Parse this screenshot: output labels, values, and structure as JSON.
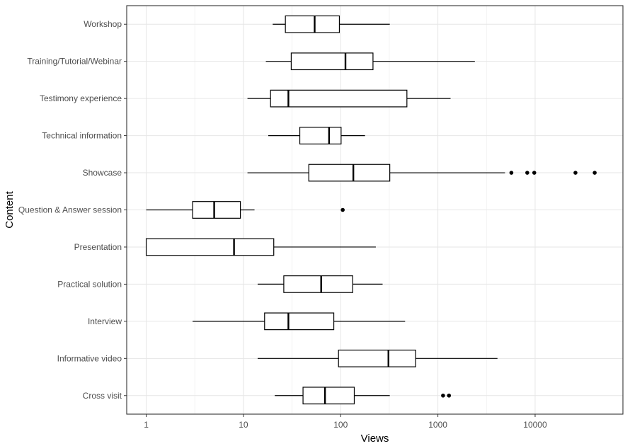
{
  "chart_data": {
    "type": "boxplot",
    "orientation": "horizontal",
    "title": "",
    "xlabel": "Views",
    "ylabel": "Content",
    "x_scale": "log10",
    "xlim": [
      0.63,
      80000
    ],
    "x_ticks": [
      1,
      10,
      100,
      1000,
      10000
    ],
    "x_tick_labels": [
      "1",
      "10",
      "100",
      "1000",
      "10000"
    ],
    "grid": true,
    "theme": "bw",
    "categories": [
      "Cross visit",
      "Informative video",
      "Interview",
      "Practical solution",
      "Presentation",
      "Question & Answer session",
      "Showcase",
      "Technical information",
      "Testimony experience",
      "Training/Tutorial/Webinar",
      "Workshop"
    ],
    "boxes": [
      {
        "category": "Cross visit",
        "whisker_low": 21,
        "q1": 41,
        "median": 69,
        "q3": 138,
        "whisker_high": 320,
        "outliers": [
          1130,
          1300
        ]
      },
      {
        "category": "Informative video",
        "whisker_low": 14,
        "q1": 95,
        "median": 310,
        "q3": 590,
        "whisker_high": 4100,
        "outliers": []
      },
      {
        "category": "Interview",
        "whisker_low": 3,
        "q1": 16.5,
        "median": 29,
        "q3": 85,
        "whisker_high": 460,
        "outliers": []
      },
      {
        "category": "Practical solution",
        "whisker_low": 14,
        "q1": 26,
        "median": 63,
        "q3": 133,
        "whisker_high": 270,
        "outliers": []
      },
      {
        "category": "Presentation",
        "whisker_low": 1,
        "q1": 1,
        "median": 8,
        "q3": 20.5,
        "whisker_high": 230,
        "outliers": []
      },
      {
        "category": "Question & Answer session",
        "whisker_low": 1,
        "q1": 3,
        "median": 5,
        "q3": 9.3,
        "whisker_high": 13,
        "outliers": [
          105
        ]
      },
      {
        "category": "Showcase",
        "whisker_low": 11,
        "q1": 47,
        "median": 135,
        "q3": 320,
        "whisker_high": 4900,
        "outliers": [
          5700,
          8300,
          9800,
          26000,
          41000
        ]
      },
      {
        "category": "Technical information",
        "whisker_low": 18,
        "q1": 38,
        "median": 76,
        "q3": 101,
        "whisker_high": 178,
        "outliers": []
      },
      {
        "category": "Testimony experience",
        "whisker_low": 11,
        "q1": 19,
        "median": 29,
        "q3": 480,
        "whisker_high": 1350,
        "outliers": []
      },
      {
        "category": "Training/Tutorial/Webinar",
        "whisker_low": 17,
        "q1": 31,
        "median": 112,
        "q3": 215,
        "whisker_high": 2400,
        "outliers": []
      },
      {
        "category": "Workshop",
        "whisker_low": 20,
        "q1": 27,
        "median": 54,
        "q3": 97,
        "whisker_high": 320,
        "outliers": []
      }
    ]
  }
}
